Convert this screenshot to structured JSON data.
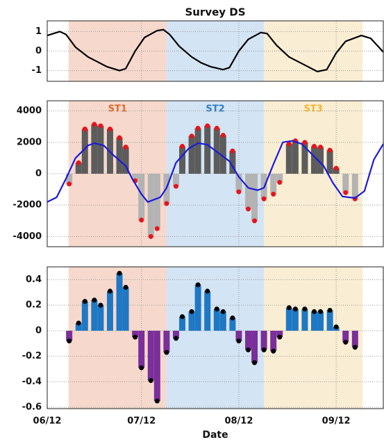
{
  "chart_data": [
    {
      "type": "line",
      "title": "Survey DS",
      "x": [
        0,
        4,
        6,
        9,
        13,
        16,
        19,
        23,
        25,
        28,
        31,
        35,
        37,
        39,
        42,
        46,
        49,
        52,
        56,
        58,
        61,
        64,
        68,
        70,
        73,
        77,
        80,
        83,
        86,
        89,
        92,
        95,
        100,
        103,
        107
      ],
      "values": [
        0.8,
        1.0,
        0.85,
        0.2,
        -0.3,
        -0.55,
        -0.8,
        -1.0,
        -0.9,
        0.0,
        0.7,
        1.05,
        1.1,
        0.85,
        0.25,
        -0.3,
        -0.6,
        -0.8,
        -0.95,
        -0.85,
        0.0,
        0.6,
        0.95,
        0.9,
        0.3,
        -0.3,
        -0.55,
        -0.8,
        -1.05,
        -0.95,
        -0.1,
        0.5,
        0.8,
        0.65,
        -0.05
      ],
      "color": "#000000",
      "ylim": [
        -1.55,
        1.55
      ],
      "yticks": [
        -1,
        0,
        1
      ],
      "grid": true
    },
    {
      "type": "bar",
      "regions": [
        {
          "label": "ST1",
          "start": 6.8,
          "end": 38,
          "color": "#f6d9cc",
          "label_color": "#d8692f"
        },
        {
          "label": "ST2",
          "start": 38,
          "end": 69,
          "color": "#d3e4f4",
          "label_color": "#2f7fbd"
        },
        {
          "label": "ST3",
          "start": 69,
          "end": 100.4,
          "color": "#f9eed3",
          "label_color": "#f2b632"
        }
      ],
      "x": [
        7,
        10,
        12,
        15,
        17,
        20,
        23,
        25,
        28,
        30,
        33,
        35,
        38,
        41,
        43,
        46,
        48,
        51,
        54,
        56,
        59,
        61,
        64,
        66,
        69,
        72,
        74,
        77,
        79,
        82,
        85,
        87,
        90,
        92,
        95,
        98
      ],
      "values": [
        -650,
        700,
        2850,
        3150,
        3050,
        2850,
        2300,
        1700,
        -450,
        -2950,
        -4000,
        -3500,
        -1900,
        -800,
        1750,
        2400,
        2900,
        3050,
        2900,
        2450,
        1450,
        -1150,
        -2250,
        -3000,
        -1600,
        -1300,
        -550,
        1900,
        2100,
        2000,
        1750,
        1700,
        1500,
        350,
        -1200,
        -1600
      ],
      "colors": {
        "positive": "#5c5c5c",
        "negative": "#b3b3b3",
        "dot": "#e8141c"
      },
      "line": {
        "x": [
          0,
          3,
          6,
          9,
          13,
          15,
          18,
          21,
          25,
          27,
          30,
          32,
          36,
          38,
          41,
          45,
          48,
          51,
          54,
          58,
          61,
          64,
          67,
          69,
          72,
          75,
          78,
          81,
          84,
          88,
          91,
          94,
          98,
          101,
          104,
          107
        ],
        "values": [
          -1800,
          -1500,
          -300,
          1000,
          1800,
          1950,
          1800,
          1200,
          500,
          -300,
          -1300,
          -1800,
          -1500,
          -900,
          700,
          1600,
          1950,
          1850,
          1400,
          800,
          -200,
          -900,
          -1050,
          -900,
          600,
          2000,
          2100,
          1900,
          1300,
          500,
          -600,
          -1450,
          -1550,
          -1100,
          900,
          1900
        ],
        "color": "#1a1adb"
      },
      "ylim": [
        -4650,
        4650
      ],
      "yticks": [
        -4000,
        -2000,
        0,
        2000,
        4000
      ],
      "grid": true
    },
    {
      "type": "bar",
      "x": [
        7,
        10,
        12,
        15,
        17,
        20,
        23,
        25,
        28,
        30,
        33,
        35,
        38,
        41,
        43,
        46,
        48,
        51,
        54,
        56,
        59,
        61,
        64,
        66,
        69,
        72,
        74,
        77,
        79,
        82,
        85,
        87,
        90,
        92,
        95,
        98
      ],
      "values": [
        -0.08,
        0.06,
        0.23,
        0.24,
        0.2,
        0.31,
        0.45,
        0.34,
        -0.05,
        -0.29,
        -0.39,
        -0.55,
        -0.17,
        -0.06,
        0.11,
        0.15,
        0.36,
        0.31,
        0.17,
        0.15,
        0.1,
        -0.08,
        -0.15,
        -0.25,
        -0.15,
        -0.16,
        -0.05,
        0.18,
        0.17,
        0.17,
        0.15,
        0.15,
        0.16,
        0.03,
        -0.09,
        -0.13
      ],
      "colors": {
        "positive": "#1f78c4",
        "negative": "#7a2f9a",
        "dot": "#000000"
      },
      "xlabel": "Date",
      "xlim": [
        0,
        107
      ],
      "xticks": [
        {
          "value": 0,
          "label": "06/12"
        },
        {
          "value": 30,
          "label": "07/12"
        },
        {
          "value": 61,
          "label": "08/12"
        },
        {
          "value": 92,
          "label": "09/12"
        }
      ],
      "ylim": [
        -0.61,
        0.5
      ],
      "yticks": [
        -0.6,
        -0.4,
        -0.2,
        0,
        0.2,
        0.4
      ],
      "grid": true
    }
  ]
}
